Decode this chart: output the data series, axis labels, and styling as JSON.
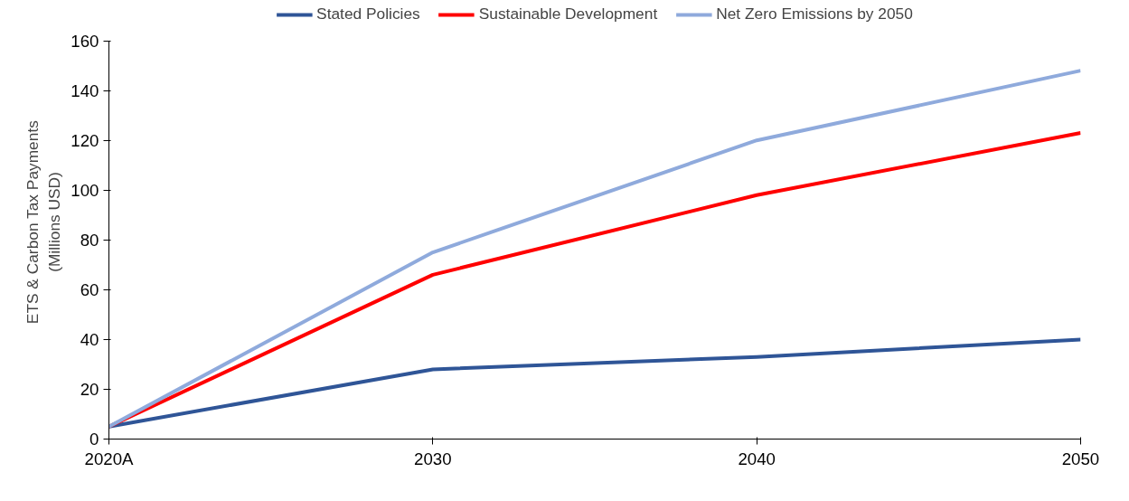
{
  "chart_data": {
    "type": "line",
    "ylabel": "ETS & Carbon Tax Payments\n(Millions USD)",
    "categories": [
      "2020A",
      "2030",
      "2040",
      "2050"
    ],
    "series": [
      {
        "name": "Stated Policies",
        "color": "#2f5597",
        "values": [
          5,
          28,
          33,
          40
        ]
      },
      {
        "name": "Sustainable Development",
        "color": "#ff0000",
        "values": [
          5,
          66,
          98,
          123
        ]
      },
      {
        "name": "Net Zero Emissions by 2050",
        "color": "#8faadc",
        "values": [
          5,
          75,
          120,
          148
        ]
      }
    ],
    "ylim": [
      0,
      160
    ],
    "yticks": [
      0,
      20,
      40,
      60,
      80,
      100,
      120,
      140,
      160
    ],
    "grid": false,
    "legend": "top",
    "marker": "none",
    "line_style": "solid"
  }
}
